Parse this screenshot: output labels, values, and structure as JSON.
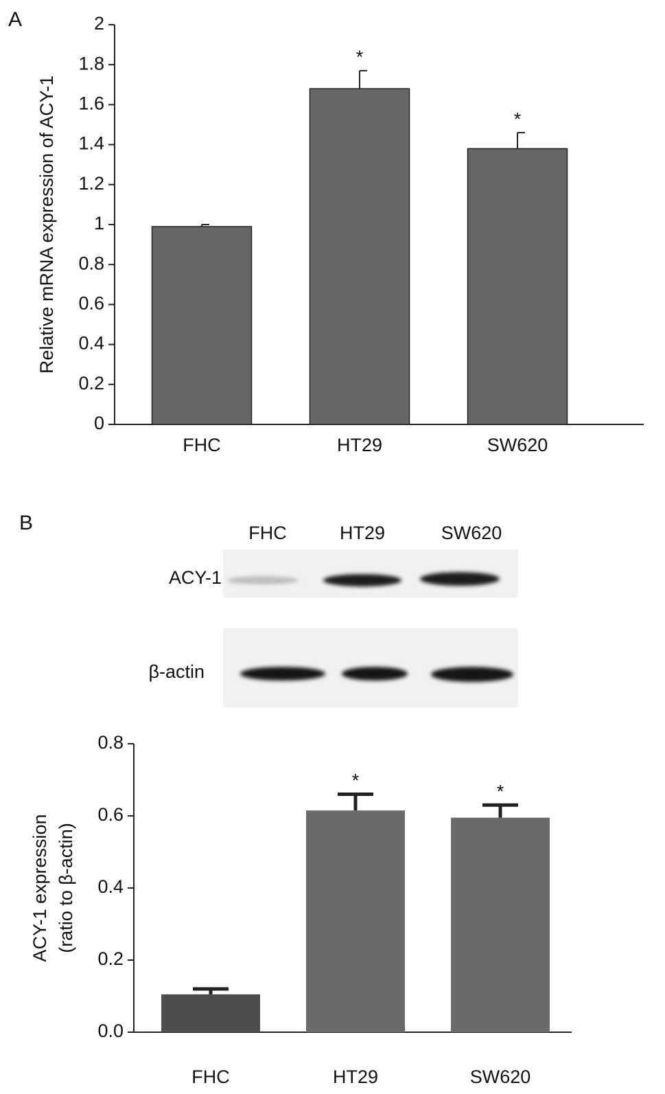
{
  "panel_labels": [
    "A",
    "B"
  ],
  "blot": {
    "lanes": [
      "FHC",
      "HT29",
      "SW620"
    ],
    "rows": [
      "ACY-1",
      "β-actin"
    ]
  },
  "chart_data": [
    {
      "type": "bar",
      "ylabel": "Relative mRNA expression of ACY-1",
      "categories": [
        "FHC",
        "HT29",
        "SW620"
      ],
      "values": [
        0.99,
        1.68,
        1.38
      ],
      "errors": [
        0.01,
        0.09,
        0.08
      ],
      "colors": [
        "#666666",
        "#666666",
        "#666666"
      ],
      "annotations": [
        {
          "x": "HT29",
          "text": "*"
        },
        {
          "x": "SW620",
          "text": "*"
        }
      ],
      "ylim": [
        0,
        2
      ],
      "yticks": [
        0,
        0.2,
        0.4,
        0.6,
        0.8,
        1,
        1.2,
        1.4,
        1.6,
        1.8,
        2
      ]
    },
    {
      "type": "bar",
      "ylabel": [
        "ACY-1 expression",
        "(ratio to β-actin)"
      ],
      "categories": [
        "FHC",
        "HT29",
        "SW620"
      ],
      "values": [
        0.105,
        0.615,
        0.595
      ],
      "errors": [
        0.015,
        0.045,
        0.035
      ],
      "colors": [
        "#4d4d4d",
        "#6b6b6b",
        "#6b6b6b"
      ],
      "annotations": [
        {
          "x": "HT29",
          "text": "*"
        },
        {
          "x": "SW620",
          "text": "*"
        }
      ],
      "ylim": [
        0,
        0.8
      ],
      "yticks": [
        {
          "value": 0,
          "label": "0.0"
        },
        0.2,
        0.4,
        0.6,
        0.8
      ]
    }
  ]
}
